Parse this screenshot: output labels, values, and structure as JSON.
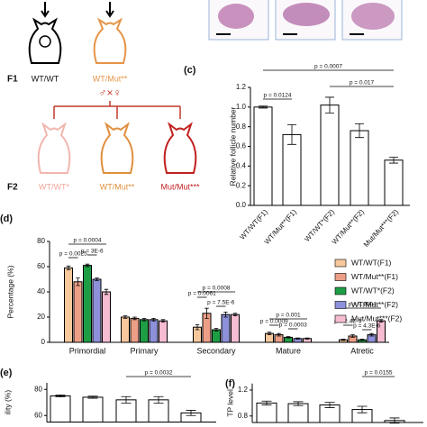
{
  "panels": [
    "(c)",
    "(d)",
    "(e)",
    "(f)"
  ],
  "diagram": {
    "f1_label": "F1",
    "f1_a": "WT/WT",
    "f1_b": "WT/Mut**",
    "cross": "♂×♀",
    "f2_label": "F2",
    "f2_a": "WT/WT*",
    "f2_b": "WT/Mut**",
    "f2_c": "Mut/Mut***"
  },
  "chart_data": [
    {
      "type": "bar",
      "ylabel": "Relative follicle number",
      "categories": [
        "WT/WT(F1)",
        "WT/Mut**(F1)",
        "WT/WT*(F2)",
        "WT/Mut**(F2)",
        "Mut/Mut***(F2)"
      ],
      "values": [
        1.0,
        0.72,
        1.02,
        0.76,
        0.46
      ],
      "errors": [
        0.01,
        0.1,
        0.08,
        0.07,
        0.03
      ],
      "color": "#ffffff",
      "ylim": [
        0,
        1.2
      ],
      "yticks": [
        {
          "value": 0,
          "label": "0.0"
        },
        0.2,
        0.4,
        0.6,
        0.8,
        {
          "value": 1,
          "label": "1.0"
        },
        1.2
      ],
      "annotations": [
        "p = 0.0124",
        "p = 0.0007",
        "p = 0.017"
      ]
    },
    {
      "type": "grouped_bar",
      "ylabel": "Percentage (%)",
      "categories": [
        "Primordial",
        "Primary",
        "Secondary",
        "Mature",
        "Atretic"
      ],
      "series": [
        {
          "name": "WT/WT(F1)",
          "color": "#f6c89c",
          "values": [
            59,
            20,
            12,
            7,
            2
          ],
          "errors": [
            1.5,
            1,
            2,
            1,
            0.5
          ]
        },
        {
          "name": "WT/Mut**(F1)",
          "color": "#ec9f86",
          "values": [
            48,
            19,
            23,
            6,
            5
          ],
          "errors": [
            3,
            1,
            4,
            1,
            1
          ]
        },
        {
          "name": "WT/WT*(F2)",
          "color": "#1e9e44",
          "values": [
            61,
            18,
            10,
            4,
            2
          ],
          "errors": [
            1,
            1,
            1,
            0.5,
            0.5
          ]
        },
        {
          "name": "WT/Mut**(F2)",
          "color": "#8d91da",
          "values": [
            50,
            18,
            22,
            3,
            6
          ],
          "errors": [
            1,
            1,
            2,
            0.5,
            1
          ]
        },
        {
          "name": "Mut/Mut***(F2)",
          "color": "#f5bcd2",
          "values": [
            40,
            17,
            22,
            3,
            17
          ],
          "errors": [
            2,
            1,
            1,
            0.5,
            1
          ]
        }
      ],
      "ylim": [
        0,
        80
      ],
      "yticks": [
        0,
        20,
        40,
        60,
        80
      ],
      "annotations": [
        "p = 0.0025",
        "p = 3E-6",
        "p = 0.0004",
        "p = 0.0061",
        "p = 7.5E-6",
        "p = 0.0008",
        "p = 0.0009",
        "p = 0.0003",
        "p = 0.001",
        "p = 2.4E-5",
        "p = 4.3E-6",
        "p = 0.0004"
      ]
    },
    {
      "type": "bar",
      "ylabel": "ility (%)",
      "values": [
        75,
        74,
        72,
        72,
        62
      ],
      "errors": [
        0.8,
        0.8,
        2.5,
        2.5,
        2
      ],
      "color": "#ffffff",
      "ylim": [
        55,
        85
      ],
      "yticks": [
        60,
        80
      ],
      "annotations": [
        "p = 0.0032"
      ]
    },
    {
      "type": "bar",
      "ylabel": "TP level",
      "values": [
        1.0,
        0.99,
        0.97,
        0.9,
        0.73
      ],
      "errors": [
        0.03,
        0.03,
        0.04,
        0.05,
        0.04
      ],
      "color": "#ffffff",
      "ylim": [
        0.7,
        1.3
      ],
      "yticks": [
        0.8,
        1.2
      ],
      "annotations": [
        "p = 0.0155"
      ]
    }
  ]
}
